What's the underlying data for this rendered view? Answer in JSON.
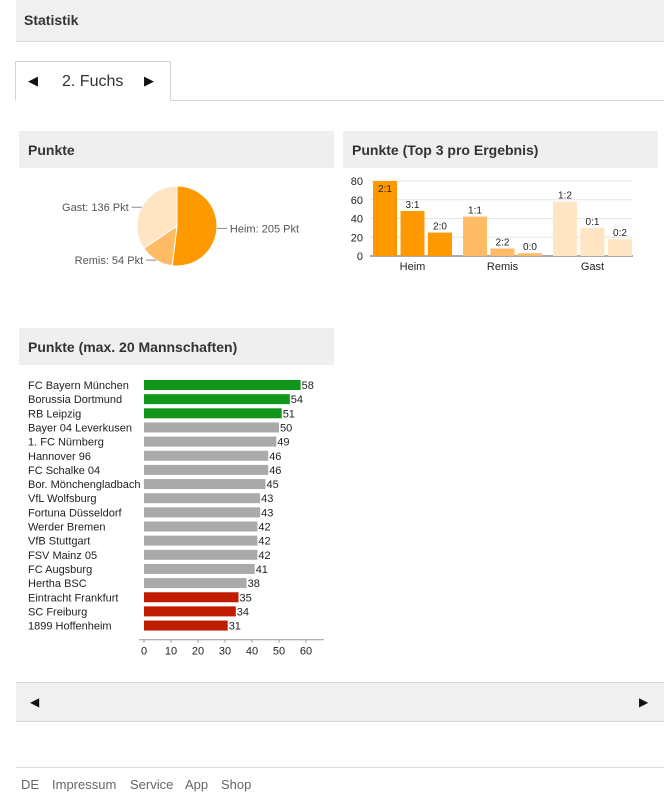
{
  "header": {
    "title": "Statistik"
  },
  "tab": {
    "prev_glyph": "◀",
    "label": "2. Fuchs",
    "next_glyph": "▶"
  },
  "panels": {
    "pie_title": "Punkte",
    "bars_title": "Punkte (Top 3 pro Ergebnis)",
    "teams_title": "Punkte (max. 20 Mannschaften)"
  },
  "pager": {
    "prev_glyph": "◀",
    "next_glyph": "▶"
  },
  "footer": {
    "links": [
      "DE",
      "Impressum",
      "Service",
      "App",
      "Shop"
    ]
  },
  "colors": {
    "heim": "#ff9900",
    "remis": "#ffbb66",
    "gast": "#ffe5c4",
    "green": "#109618",
    "grey": "#aaaaaa",
    "red": "#c01c00"
  },
  "chart_data": [
    {
      "type": "pie",
      "title": "Punkte",
      "slices": [
        {
          "label": "Heim",
          "value": 205,
          "text": "Heim: 205 Pkt"
        },
        {
          "label": "Remis",
          "value": 54,
          "text": "Remis: 54 Pkt"
        },
        {
          "label": "Gast",
          "value": 136,
          "text": "Gast: 136 Pkt"
        }
      ]
    },
    {
      "type": "bar",
      "title": "Punkte (Top 3 pro Ergebnis)",
      "ylim": [
        0,
        80
      ],
      "yticks": [
        0,
        20,
        40,
        60,
        80
      ],
      "groups": [
        {
          "name": "Heim",
          "bars": [
            {
              "label": "2:1",
              "value": 80
            },
            {
              "label": "3:1",
              "value": 48
            },
            {
              "label": "2:0",
              "value": 25
            }
          ]
        },
        {
          "name": "Remis",
          "bars": [
            {
              "label": "1:1",
              "value": 42
            },
            {
              "label": "2:2",
              "value": 8
            },
            {
              "label": "0:0",
              "value": 3
            }
          ]
        },
        {
          "name": "Gast",
          "bars": [
            {
              "label": "1:2",
              "value": 58
            },
            {
              "label": "0:1",
              "value": 30
            },
            {
              "label": "0:2",
              "value": 18
            }
          ]
        }
      ]
    },
    {
      "type": "bar",
      "orientation": "horizontal",
      "title": "Punkte (max. 20 Mannschaften)",
      "xlim": [
        0,
        60
      ],
      "xticks": [
        0,
        10,
        20,
        30,
        40,
        50,
        60
      ],
      "teams": [
        {
          "name": "FC Bayern München",
          "value": 58,
          "group": "green"
        },
        {
          "name": "Borussia Dortmund",
          "value": 54,
          "group": "green"
        },
        {
          "name": "RB Leipzig",
          "value": 51,
          "group": "green"
        },
        {
          "name": "Bayer 04 Leverkusen",
          "value": 50,
          "group": "grey"
        },
        {
          "name": "1. FC Nürnberg",
          "value": 49,
          "group": "grey"
        },
        {
          "name": "Hannover 96",
          "value": 46,
          "group": "grey"
        },
        {
          "name": "FC Schalke 04",
          "value": 46,
          "group": "grey"
        },
        {
          "name": "Bor. Mönchengladbach",
          "value": 45,
          "group": "grey"
        },
        {
          "name": "VfL Wolfsburg",
          "value": 43,
          "group": "grey"
        },
        {
          "name": "Fortuna Düsseldorf",
          "value": 43,
          "group": "grey"
        },
        {
          "name": "Werder Bremen",
          "value": 42,
          "group": "grey"
        },
        {
          "name": "VfB Stuttgart",
          "value": 42,
          "group": "grey"
        },
        {
          "name": "FSV Mainz 05",
          "value": 42,
          "group": "grey"
        },
        {
          "name": "FC Augsburg",
          "value": 41,
          "group": "grey"
        },
        {
          "name": "Hertha BSC",
          "value": 38,
          "group": "grey"
        },
        {
          "name": "Eintracht Frankfurt",
          "value": 35,
          "group": "red"
        },
        {
          "name": "SC Freiburg",
          "value": 34,
          "group": "red"
        },
        {
          "name": "1899 Hoffenheim",
          "value": 31,
          "group": "red"
        }
      ]
    }
  ]
}
